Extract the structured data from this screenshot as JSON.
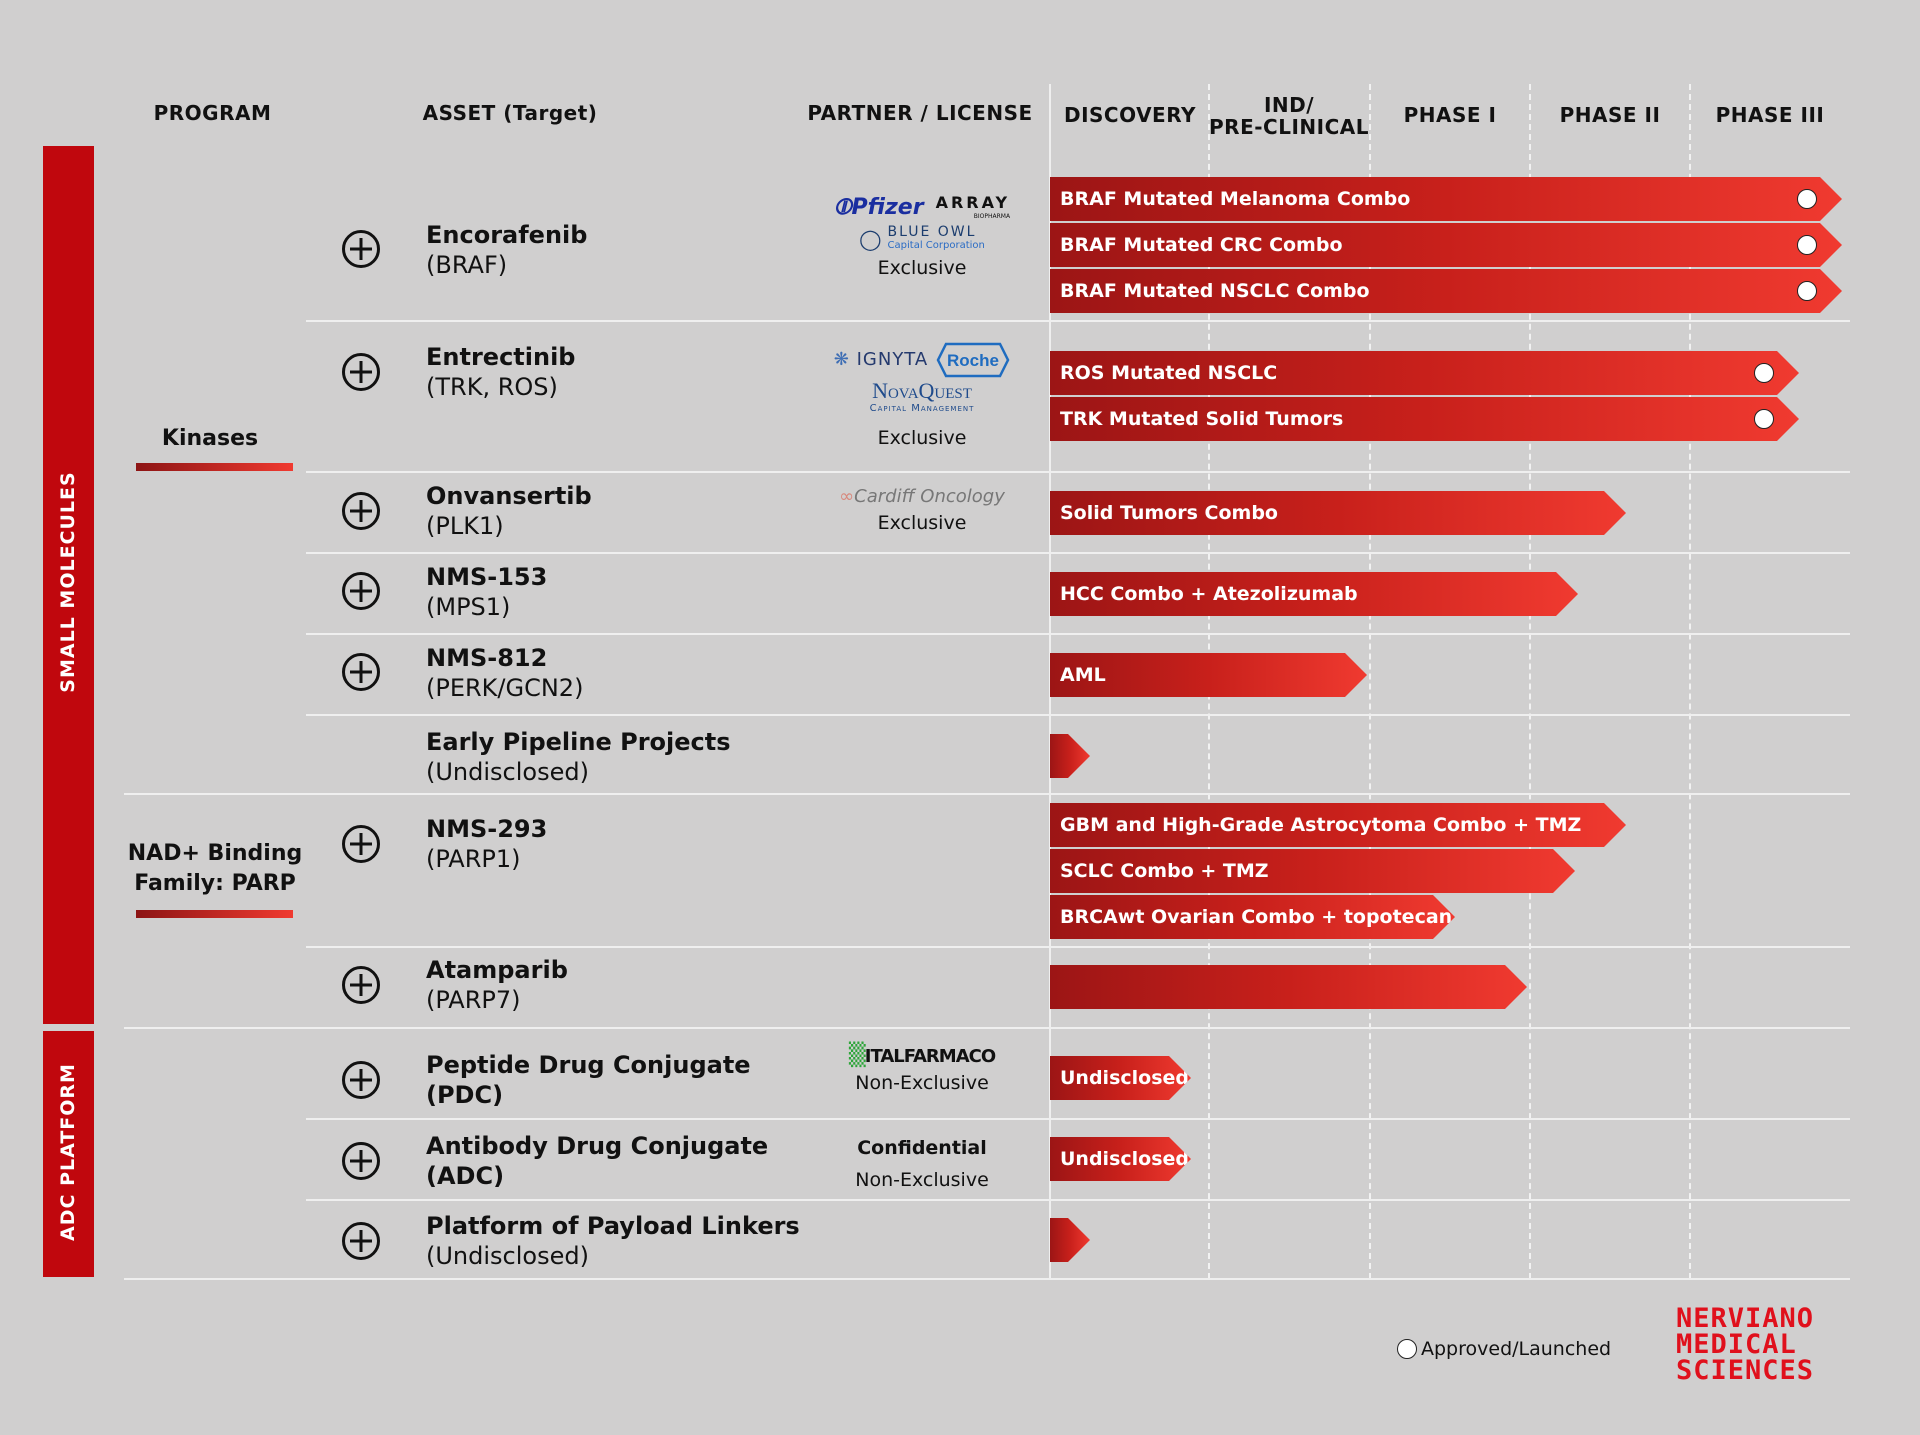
{
  "headers": {
    "program": "PROGRAM",
    "asset": "ASSET (Target)",
    "partner": "PARTNER / LICENSE",
    "stages": [
      "DISCOVERY",
      "IND/\nPRE-CLINICAL",
      "PHASE I",
      "PHASE II",
      "PHASE III"
    ]
  },
  "categories": [
    {
      "label": "SMALL MOLECULES"
    },
    {
      "label": "ADC PLATFORM"
    }
  ],
  "groups": [
    {
      "label": "Kinases"
    },
    {
      "label": "NAD+ Binding\nFamily: PARP"
    }
  ],
  "partners": {
    "pfizer": "Pfizer",
    "array": "ARRAY",
    "array_sub": "BIOPHARMA",
    "blue_owl": "BLUE OWL",
    "blue_owl_sub": "Capital Corporation",
    "ignyta": "IGNYTA",
    "roche": "Roche",
    "novaquest": "NovaQuest",
    "novaquest_sub": "Capital Management",
    "cardiff": "Cardiff Oncology",
    "italfarmaco": "ITALFARMACO",
    "confidential": "Confidential",
    "exclusive": "Exclusive",
    "non_exclusive": "Non-Exclusive"
  },
  "assets": [
    {
      "name": "Encorafenib",
      "target": "(BRAF)"
    },
    {
      "name": "Entrectinib",
      "target": "(TRK, ROS)"
    },
    {
      "name": "Onvansertib",
      "target": "(PLK1)"
    },
    {
      "name": "NMS-153",
      "target": "(MPS1)"
    },
    {
      "name": "NMS-812",
      "target": "(PERK/GCN2)"
    },
    {
      "name": "Early Pipeline Projects",
      "target": "(Undisclosed)"
    },
    {
      "name": "NMS-293",
      "target": "(PARP1)"
    },
    {
      "name": "Atamparib",
      "target": "(PARP7)"
    },
    {
      "name": "Peptide Drug Conjugate",
      "target": "(PDC)"
    },
    {
      "name": "Antibody Drug Conjugate",
      "target": "(ADC)"
    },
    {
      "name": "Platform of Payload Linkers",
      "target": "(Undisclosed)"
    }
  ],
  "chart_data": {
    "type": "bar",
    "orientation": "horizontal",
    "stages": [
      "DISCOVERY",
      "IND/PRE-CLINICAL",
      "PHASE I",
      "PHASE II",
      "PHASE III"
    ],
    "value_unit": "stage progress (0 = start of Discovery, 5 = end of Phase III)",
    "xlim": [
      0,
      5
    ],
    "bars": [
      {
        "asset": "Encorafenib",
        "label": "BRAF Mutated Melanoma Combo",
        "value": 4.95,
        "approved": true
      },
      {
        "asset": "Encorafenib",
        "label": "BRAF Mutated CRC Combo",
        "value": 4.95,
        "approved": true
      },
      {
        "asset": "Encorafenib",
        "label": "BRAF Mutated NSCLC Combo",
        "value": 4.95,
        "approved": true
      },
      {
        "asset": "Entrectinib",
        "label": "ROS Mutated NSCLC",
        "value": 4.68,
        "approved": true
      },
      {
        "asset": "Entrectinib",
        "label": "TRK Mutated Solid Tumors",
        "value": 4.68,
        "approved": true
      },
      {
        "asset": "Onvansertib",
        "label": "Solid Tumors Combo",
        "value": 3.6,
        "approved": false
      },
      {
        "asset": "NMS-153",
        "label": "HCC Combo + Atezolizumab",
        "value": 3.3,
        "approved": false
      },
      {
        "asset": "NMS-812",
        "label": "AML",
        "value": 1.98,
        "approved": false
      },
      {
        "asset": "Early Pipeline Projects",
        "label": "",
        "value": 0.25,
        "approved": false
      },
      {
        "asset": "NMS-293",
        "label": "GBM and High-Grade Astrocytoma Combo + TMZ",
        "value": 3.6,
        "approved": false
      },
      {
        "asset": "NMS-293",
        "label": "SCLC Combo + TMZ",
        "value": 3.28,
        "approved": false
      },
      {
        "asset": "NMS-293",
        "label": "BRCAwt Ovarian Combo + topotecan",
        "value": 2.53,
        "approved": false
      },
      {
        "asset": "Atamparib",
        "label": "",
        "value": 2.98,
        "approved": false
      },
      {
        "asset": "Peptide Drug Conjugate",
        "label": "Undisclosed",
        "value": 0.88,
        "approved": false
      },
      {
        "asset": "Antibody Drug Conjugate",
        "label": "Undisclosed",
        "value": 0.88,
        "approved": false
      },
      {
        "asset": "Platform of Payload Linkers",
        "label": "",
        "value": 0.25,
        "approved": false
      }
    ],
    "legend": {
      "approved_label": "Approved/Launched",
      "position": "bottom-right"
    }
  },
  "brand": {
    "line1": "NERVIANO",
    "line2": "MEDICAL",
    "line3": "SCIENCES",
    "color": "#e0101c"
  },
  "colors": {
    "accent": "#c0070d",
    "bar_start": "#9c1515",
    "bar_end": "#f03a30",
    "background": "#d0cfcf"
  }
}
